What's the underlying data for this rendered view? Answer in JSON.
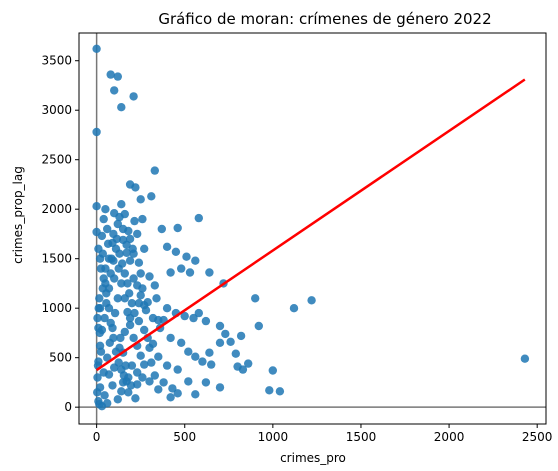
{
  "chart_data": {
    "type": "scatter",
    "title": "Gráfico de moran: crímenes de género 2022",
    "xlabel": "crimes_pro",
    "ylabel": "crimes_prop_lag",
    "xlim": [
      -100,
      2550
    ],
    "ylim": [
      -170,
      3780
    ],
    "xticks": [
      0,
      500,
      1000,
      1500,
      2000,
      2500
    ],
    "yticks": [
      0,
      500,
      1000,
      1500,
      2000,
      2500,
      3000,
      3500
    ],
    "reference_lines": {
      "x": 0,
      "y": 0
    },
    "point_color": "#1f77b4",
    "line_color": "#ff0000",
    "fit_line": {
      "x": [
        0,
        2430
      ],
      "y": [
        375,
        3310
      ]
    },
    "points": [
      [
        0,
        3620
      ],
      [
        0,
        2780
      ],
      [
        80,
        3360
      ],
      [
        120,
        3340
      ],
      [
        100,
        3200
      ],
      [
        210,
        3140
      ],
      [
        140,
        3030
      ],
      [
        330,
        2390
      ],
      [
        0,
        2030
      ],
      [
        0,
        1770
      ],
      [
        190,
        2250
      ],
      [
        220,
        2220
      ],
      [
        250,
        2100
      ],
      [
        310,
        2130
      ],
      [
        50,
        2000
      ],
      [
        100,
        1960
      ],
      [
        260,
        1900
      ],
      [
        580,
        1910
      ],
      [
        370,
        1800
      ],
      [
        460,
        1810
      ],
      [
        140,
        2050
      ],
      [
        30,
        1730
      ],
      [
        90,
        1660
      ],
      [
        150,
        1800
      ],
      [
        170,
        1640
      ],
      [
        210,
        1550
      ],
      [
        190,
        1480
      ],
      [
        400,
        1620
      ],
      [
        450,
        1570
      ],
      [
        510,
        1520
      ],
      [
        480,
        1400
      ],
      [
        560,
        1480
      ],
      [
        420,
        1360
      ],
      [
        530,
        1360
      ],
      [
        640,
        1360
      ],
      [
        720,
        1250
      ],
      [
        900,
        1100
      ],
      [
        1220,
        1080
      ],
      [
        1120,
        1000
      ],
      [
        300,
        1320
      ],
      [
        240,
        1460
      ],
      [
        330,
        1230
      ],
      [
        260,
        1200
      ],
      [
        340,
        1100
      ],
      [
        290,
        1060
      ],
      [
        400,
        1000
      ],
      [
        450,
        950
      ],
      [
        500,
        920
      ],
      [
        550,
        900
      ],
      [
        580,
        950
      ],
      [
        620,
        870
      ],
      [
        700,
        820
      ],
      [
        730,
        740
      ],
      [
        820,
        720
      ],
      [
        920,
        820
      ],
      [
        360,
        800
      ],
      [
        420,
        700
      ],
      [
        480,
        650
      ],
      [
        520,
        560
      ],
      [
        560,
        510
      ],
      [
        600,
        460
      ],
      [
        650,
        430
      ],
      [
        700,
        650
      ],
      [
        760,
        660
      ],
      [
        790,
        540
      ],
      [
        800,
        410
      ],
      [
        860,
        440
      ],
      [
        830,
        380
      ],
      [
        1000,
        370
      ],
      [
        980,
        170
      ],
      [
        1040,
        160
      ],
      [
        640,
        550
      ],
      [
        400,
        420
      ],
      [
        460,
        380
      ],
      [
        330,
        320
      ],
      [
        380,
        250
      ],
      [
        430,
        190
      ],
      [
        520,
        260
      ],
      [
        620,
        250
      ],
      [
        700,
        200
      ],
      [
        460,
        140
      ],
      [
        560,
        130
      ],
      [
        420,
        100
      ],
      [
        2430,
        490
      ],
      [
        300,
        600
      ],
      [
        350,
        510
      ],
      [
        250,
        520
      ],
      [
        200,
        420
      ],
      [
        260,
        300
      ],
      [
        310,
        450
      ],
      [
        230,
        230
      ],
      [
        180,
        150
      ],
      [
        150,
        250
      ],
      [
        120,
        80
      ],
      [
        60,
        40
      ],
      [
        30,
        10
      ],
      [
        10,
        60
      ],
      [
        5,
        300
      ],
      [
        10,
        460
      ],
      [
        20,
        620
      ],
      [
        30,
        780
      ],
      [
        45,
        900
      ],
      [
        55,
        1050
      ],
      [
        70,
        1200
      ],
      [
        80,
        1350
      ],
      [
        95,
        1480
      ],
      [
        110,
        1600
      ],
      [
        125,
        1400
      ],
      [
        140,
        1250
      ],
      [
        160,
        1100
      ],
      [
        175,
        960
      ],
      [
        190,
        830
      ],
      [
        210,
        700
      ],
      [
        230,
        620
      ],
      [
        20,
        200
      ],
      [
        40,
        350
      ],
      [
        60,
        500
      ],
      [
        75,
        650
      ],
      [
        90,
        800
      ],
      [
        105,
        950
      ],
      [
        120,
        1100
      ],
      [
        135,
        700
      ],
      [
        150,
        550
      ],
      [
        165,
        420
      ],
      [
        180,
        300
      ],
      [
        195,
        220
      ],
      [
        15,
        1100
      ],
      [
        25,
        1400
      ],
      [
        35,
        1550
      ],
      [
        50,
        1250
      ],
      [
        65,
        1650
      ],
      [
        85,
        1500
      ],
      [
        100,
        1300
      ],
      [
        115,
        1700
      ],
      [
        130,
        1550
      ],
      [
        145,
        1450
      ],
      [
        160,
        1350
      ],
      [
        175,
        1250
      ],
      [
        185,
        1150
      ],
      [
        200,
        1050
      ],
      [
        215,
        950
      ],
      [
        240,
        870
      ],
      [
        270,
        780
      ],
      [
        290,
        700
      ],
      [
        240,
        1050
      ],
      [
        280,
        980
      ],
      [
        320,
        900
      ],
      [
        350,
        880
      ],
      [
        380,
        880
      ],
      [
        320,
        640
      ],
      [
        270,
        430
      ],
      [
        230,
        350
      ],
      [
        300,
        260
      ],
      [
        350,
        180
      ],
      [
        220,
        90
      ],
      [
        140,
        160
      ],
      [
        90,
        220
      ],
      [
        10,
        1600
      ],
      [
        20,
        1500
      ],
      [
        40,
        1300
      ],
      [
        55,
        1150
      ],
      [
        70,
        1000
      ],
      [
        80,
        850
      ],
      [
        95,
        700
      ],
      [
        110,
        560
      ],
      [
        125,
        450
      ],
      [
        140,
        380
      ],
      [
        155,
        320
      ],
      [
        170,
        260
      ],
      [
        5,
        900
      ],
      [
        12,
        1000
      ],
      [
        18,
        750
      ],
      [
        25,
        560
      ],
      [
        8,
        420
      ],
      [
        3,
        150
      ],
      [
        15,
        30
      ],
      [
        45,
        120
      ],
      [
        70,
        330
      ],
      [
        100,
        400
      ],
      [
        130,
        600
      ],
      [
        160,
        760
      ],
      [
        190,
        900
      ],
      [
        210,
        1300
      ],
      [
        230,
        1230
      ],
      [
        250,
        1130
      ],
      [
        270,
        1030
      ],
      [
        190,
        1700
      ],
      [
        170,
        1560
      ],
      [
        150,
        1690
      ],
      [
        60,
        1800
      ],
      [
        40,
        1900
      ],
      [
        120,
        1850
      ],
      [
        95,
        1750
      ],
      [
        250,
        1350
      ],
      [
        270,
        1600
      ],
      [
        230,
        1750
      ],
      [
        205,
        1600
      ],
      [
        180,
        1780
      ],
      [
        215,
        1880
      ],
      [
        160,
        1950
      ],
      [
        130,
        1920
      ],
      [
        70,
        1500
      ],
      [
        50,
        1400
      ],
      [
        35,
        1200
      ],
      [
        20,
        1000
      ],
      [
        10,
        800
      ]
    ]
  }
}
